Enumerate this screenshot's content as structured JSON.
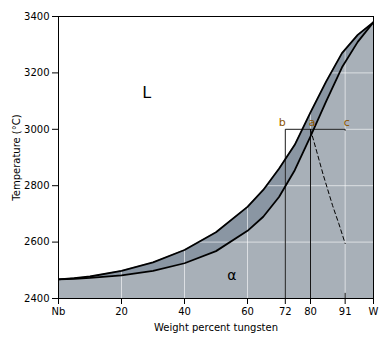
{
  "chart_data": {
    "type": "line",
    "xlabel": "Weight percent tungsten",
    "ylabel": "Temperature (°C)",
    "xlim": [
      0,
      100
    ],
    "ylim": [
      2400,
      3400
    ],
    "xticks": [
      {
        "value": 0,
        "label": "Nb"
      },
      20,
      40,
      60,
      72,
      80,
      91,
      {
        "value": 100,
        "label": "W"
      }
    ],
    "yticks": [
      2400,
      2600,
      2800,
      3000,
      3200,
      3400
    ],
    "grid": true,
    "series": [
      {
        "type": "area",
        "color": "#8a96a3",
        "line_style": "solid",
        "x": [
          0,
          5,
          10,
          20,
          30,
          40,
          50,
          60,
          65,
          70,
          75,
          80,
          85,
          90,
          95,
          100
        ],
        "values": [
          2468,
          2472,
          2478,
          2498,
          2528,
          2572,
          2635,
          2725,
          2785,
          2860,
          2945,
          3060,
          3170,
          3270,
          3335,
          3380
        ]
      },
      {
        "type": "area",
        "color": "#a8b0b8",
        "line_style": "solid",
        "x": [
          0,
          5,
          10,
          20,
          30,
          40,
          50,
          60,
          65,
          70,
          75,
          80,
          85,
          90,
          95,
          100
        ],
        "values": [
          2468,
          2470,
          2473,
          2482,
          2498,
          2525,
          2568,
          2640,
          2690,
          2760,
          2855,
          2975,
          3100,
          3220,
          3310,
          3380
        ]
      },
      {
        "type": "line",
        "color": "#000000",
        "line_style": "dashed",
        "x": [
          80,
          82,
          84,
          87,
          89,
          91
        ],
        "values": [
          3000,
          2920,
          2840,
          2730,
          2665,
          2595
        ]
      }
    ],
    "segments": [
      {
        "x1": 72,
        "y1": 2400,
        "x2": 72,
        "y2": 3000
      },
      {
        "x1": 80,
        "y1": 2400,
        "x2": 80,
        "y2": 3000
      },
      {
        "x1": 91,
        "y1": 2400,
        "x2": 91,
        "y2": 2420
      },
      {
        "x1": 91,
        "y1": 2995,
        "x2": 91,
        "y2": 3000
      },
      {
        "x1": 72,
        "y1": 3000,
        "x2": 91,
        "y2": 3000
      }
    ],
    "annotations": [
      {
        "text": "L",
        "x": 28,
        "y": 3130
      },
      {
        "text": "α",
        "x": 55,
        "y": 2480
      },
      {
        "text": "b",
        "x": 71.0,
        "y": 3012,
        "color": "#8B5500"
      },
      {
        "text": "a",
        "x": 80.5,
        "y": 3012,
        "color": "#8B5500"
      },
      {
        "text": "c",
        "x": 91.5,
        "y": 3012,
        "color": "#8B5500"
      }
    ]
  }
}
